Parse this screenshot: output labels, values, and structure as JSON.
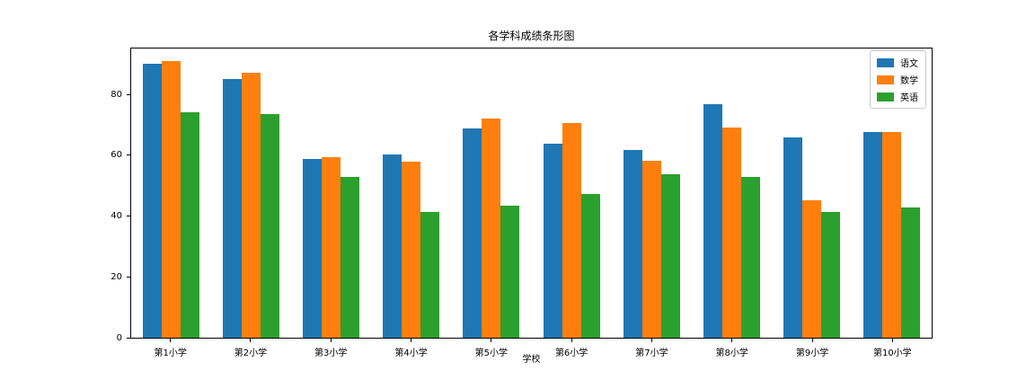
{
  "chart_data": {
    "type": "bar",
    "title": "各学科成绩条形图",
    "xlabel": "学校",
    "ylabel": "",
    "categories": [
      "第1小学",
      "第2小学",
      "第3小学",
      "第4小学",
      "第5小学",
      "第6小学",
      "第7小学",
      "第8小学",
      "第9小学",
      "第10小学"
    ],
    "series": [
      {
        "name": "语文",
        "color": "#1f77b4",
        "values": [
          90.5,
          85.5,
          59,
          60.5,
          69,
          64,
          62,
          77,
          66,
          68
        ]
      },
      {
        "name": "数学",
        "color": "#ff7f0e",
        "values": [
          91.5,
          87.5,
          59.5,
          58,
          72.5,
          71,
          58.5,
          69.5,
          45.5,
          68
        ]
      },
      {
        "name": "英语",
        "color": "#2ca02c",
        "values": [
          74.5,
          74,
          53,
          41.5,
          43.5,
          47.5,
          54,
          53,
          41.5,
          43
        ]
      }
    ],
    "ylim": [
      0,
      95.5
    ],
    "yticks": [
      0,
      20,
      40,
      60,
      80
    ],
    "grid": false,
    "legend_position": "upper right",
    "spine_color": "#000000",
    "background_color": "#ffffff"
  }
}
